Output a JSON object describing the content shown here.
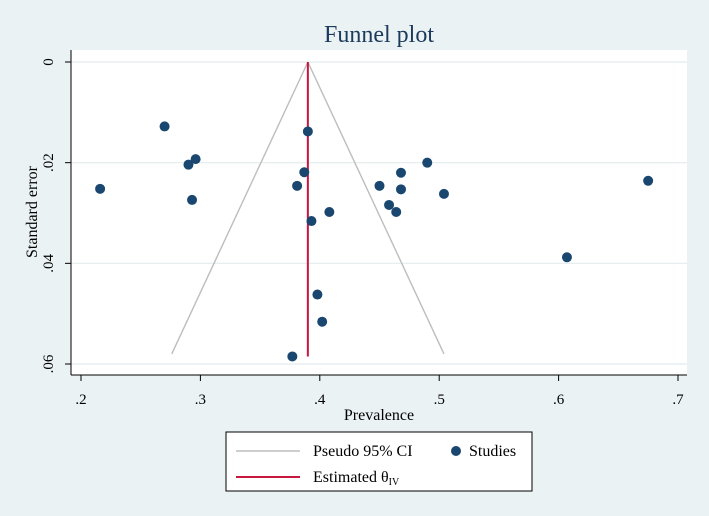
{
  "colors": {
    "background": "#eaf2f3",
    "plot_background": "#ffffff",
    "gridline": "#e2ecee",
    "title": "#1b3a5c",
    "ci_lines": "#bdbdbd",
    "estimate_line": "#c8163f",
    "points": "#1a476f"
  },
  "chart_data": {
    "type": "scatter",
    "title": "Funnel plot",
    "xlabel": "Prevalence",
    "ylabel": "Standard error",
    "xlim": [
      0.2,
      0.7
    ],
    "ylim": [
      0,
      0.06
    ],
    "y_reversed": true,
    "x_ticks": [
      0.2,
      0.3,
      0.4,
      0.5,
      0.6,
      0.7
    ],
    "x_tick_labels": [
      ".2",
      ".3",
      ".4",
      ".5",
      ".6",
      ".7"
    ],
    "y_ticks": [
      0,
      0.02,
      0.04,
      0.06
    ],
    "y_tick_labels": [
      "0",
      ".02",
      ".04",
      ".06"
    ],
    "grid": true,
    "estimate": 0.39,
    "ci_line": {
      "label": "Pseudo 95% CI",
      "apex": [
        0.39,
        0
      ],
      "left_end": [
        0.276,
        0.058
      ],
      "right_end": [
        0.504,
        0.058
      ]
    },
    "estimate_line": {
      "label": "Estimated θ",
      "sub": "IV",
      "y_range": [
        0,
        0.0585
      ]
    },
    "series": [
      {
        "name": "Studies",
        "points": [
          [
            0.27,
            0.0128
          ],
          [
            0.39,
            0.0138
          ],
          [
            0.296,
            0.0193
          ],
          [
            0.29,
            0.0204
          ],
          [
            0.387,
            0.0219
          ],
          [
            0.468,
            0.022
          ],
          [
            0.49,
            0.02
          ],
          [
            0.216,
            0.0252
          ],
          [
            0.381,
            0.0246
          ],
          [
            0.45,
            0.0246
          ],
          [
            0.468,
            0.0253
          ],
          [
            0.504,
            0.0262
          ],
          [
            0.675,
            0.0236
          ],
          [
            0.293,
            0.0274
          ],
          [
            0.458,
            0.0284
          ],
          [
            0.464,
            0.0298
          ],
          [
            0.408,
            0.0298
          ],
          [
            0.393,
            0.0316
          ],
          [
            0.607,
            0.0388
          ],
          [
            0.398,
            0.0462
          ],
          [
            0.402,
            0.0516
          ],
          [
            0.377,
            0.0585
          ]
        ]
      }
    ],
    "legend": {
      "position": "bottom",
      "items": [
        {
          "key": "ci",
          "label": "Pseudo 95% CI"
        },
        {
          "key": "studies",
          "label": "Studies"
        },
        {
          "key": "est",
          "label": "Estimated θ",
          "sub": "IV"
        }
      ]
    }
  }
}
